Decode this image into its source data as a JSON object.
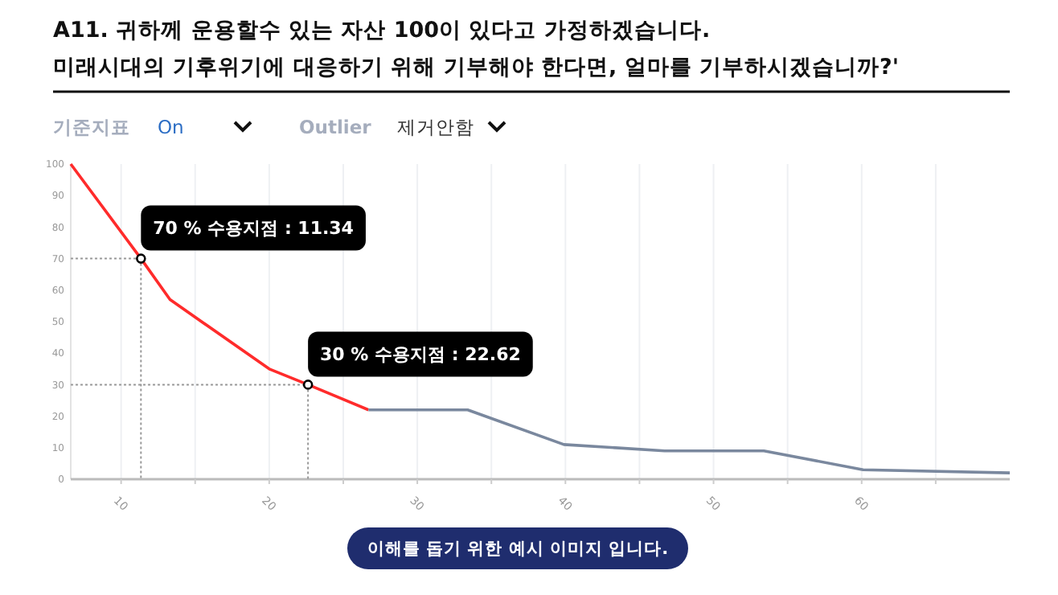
{
  "chart_data": {
    "type": "line",
    "title": "A11. 귀하께 운용할수 있는 자산 100이 있다고 가정하겠습니다.",
    "subtitle": "미래시대의 기후위기에 대응하기 위해 기부해야 한다면, 얼마를 기부하시겠습니까?'",
    "series": [
      {
        "color": "#ff2b2b",
        "x": [
          6.6,
          11.34,
          13.3,
          20.0,
          22.62,
          26.7
        ],
        "values": [
          100,
          70,
          57,
          35,
          30,
          22
        ]
      },
      {
        "color": "#7a889e",
        "x": [
          26.7,
          33.4,
          39.9,
          46.7,
          53.4,
          60.1,
          70
        ],
        "values": [
          22,
          22,
          11,
          9,
          9,
          3,
          2
        ]
      }
    ],
    "xlim": [
      6.6,
      70
    ],
    "xticks": [
      10,
      {
        "value": 15,
        "label": null
      },
      20,
      {
        "value": 25,
        "label": null
      },
      30,
      {
        "value": 35,
        "label": null
      },
      40,
      {
        "value": 45,
        "label": null
      },
      50,
      {
        "value": 55,
        "label": null
      },
      60,
      {
        "value": 65,
        "label": null
      }
    ],
    "ylim": [
      0,
      100
    ],
    "yticks": [
      0,
      10,
      20,
      30,
      40,
      50,
      60,
      70,
      80,
      90,
      100
    ],
    "grid": "x",
    "marker": "none",
    "line_style": "solid",
    "annotations": [
      "기준지표",
      "On",
      "Outlier",
      "제거안함",
      {
        "text": "70 % 수용지점 : 11.34",
        "x": 11.34,
        "y": 70
      },
      {
        "text": "30 % 수용지점 : 22.62",
        "x": 22.62,
        "y": 30
      },
      "이해를 돕기 위한 예시 이미지 입니다."
    ]
  }
}
